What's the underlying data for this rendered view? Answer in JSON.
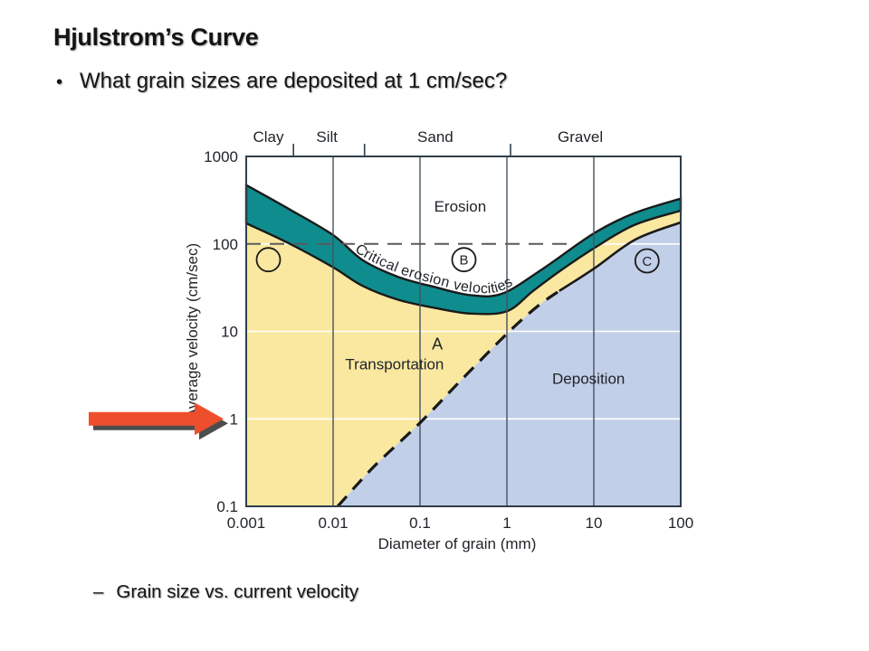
{
  "slide": {
    "title": "Hjulstrom’s Curve",
    "bullet_marker": "•",
    "bullet": "What grain sizes are deposited at 1 cm/sec?",
    "footer_marker": "–",
    "footer": "Grain size vs. current velocity"
  },
  "chart_data": {
    "type": "area",
    "title": "Hjulstrom's Curve (grain size vs. current velocity)",
    "x_scale": "log",
    "y_scale": "log",
    "xlim": [
      0.001,
      100
    ],
    "ylim": [
      0.1,
      1000
    ],
    "xlabel": "Diameter of grain (mm)",
    "ylabel": "Average velocity (cm/sec)",
    "x_ticks": [
      "0.001",
      "0.01",
      "0.1",
      "1",
      "10",
      "100"
    ],
    "y_ticks": [
      "1000",
      "100",
      "10",
      "1",
      "0.1"
    ],
    "grid": "on",
    "grain_classes": {
      "labels": [
        "Clay",
        "Silt",
        "Sand",
        "Gravel"
      ],
      "label_x": [
        0.0018,
        0.0085,
        0.15,
        7
      ],
      "boundary_x": [
        0.0035,
        0.023,
        1.1
      ]
    },
    "regions": [
      {
        "name": "Erosion",
        "label_x": 0.29,
        "label_y": 235
      },
      {
        "name": "Transportation",
        "label_x": 0.051,
        "label_y": 3.7
      },
      {
        "name": "Deposition",
        "label_x": 8.7,
        "label_y": 2.5
      }
    ],
    "band_label": "Critical erosion velocities",
    "series": [
      {
        "name": "critical-erosion-upper",
        "x": [
          0.001,
          0.0032,
          0.01,
          0.022,
          0.056,
          0.15,
          0.38,
          0.88,
          2.6,
          10,
          29,
          100
        ],
        "y": [
          470,
          246,
          126,
          65,
          42,
          32,
          26,
          27,
          52,
          132,
          224,
          330
        ]
      },
      {
        "name": "critical-erosion-lower",
        "x": [
          0.001,
          0.0032,
          0.01,
          0.022,
          0.056,
          0.15,
          0.38,
          1.0,
          2.0,
          4.2,
          10,
          29,
          100
        ],
        "y": [
          172,
          100,
          54,
          33,
          23,
          18.5,
          16,
          17,
          29,
          50,
          89,
          164,
          240
        ]
      },
      {
        "name": "deposition-boundary",
        "x": [
          0.0113,
          0.03,
          0.1,
          0.3,
          1,
          2.2,
          4,
          10,
          30,
          100
        ],
        "y": [
          0.1,
          0.29,
          0.9,
          2.8,
          9.4,
          19,
          29,
          52,
          112,
          176
        ],
        "dashed_until_x": 4
      }
    ],
    "reference_line": {
      "velocity": 100,
      "x_start": 0.001,
      "x_end": 5.6,
      "style": "dashed"
    },
    "point_labels": [
      {
        "text": "",
        "x": 0.0018,
        "y": 66,
        "circled": true
      },
      {
        "text": "B",
        "x": 0.32,
        "y": 66,
        "circled": true
      },
      {
        "text": "C",
        "x": 41,
        "y": 64,
        "circled": true
      },
      {
        "text": "A",
        "x": 0.158,
        "y": 7.2,
        "circled": false
      }
    ],
    "colors": {
      "transportation": "#FAE8A0",
      "deposition": "#C2CFE8",
      "band": "#0F8C8E",
      "outline": "#1a1a1a",
      "gridline": "#45525e",
      "white_grid": "#ffffff",
      "ref_dash": "#5a5a5a",
      "frame": "#2f3e49"
    },
    "arrow": {
      "points_at_velocity": 1,
      "color": "#EE4E2B",
      "shadow": "#4d4d4d"
    }
  }
}
